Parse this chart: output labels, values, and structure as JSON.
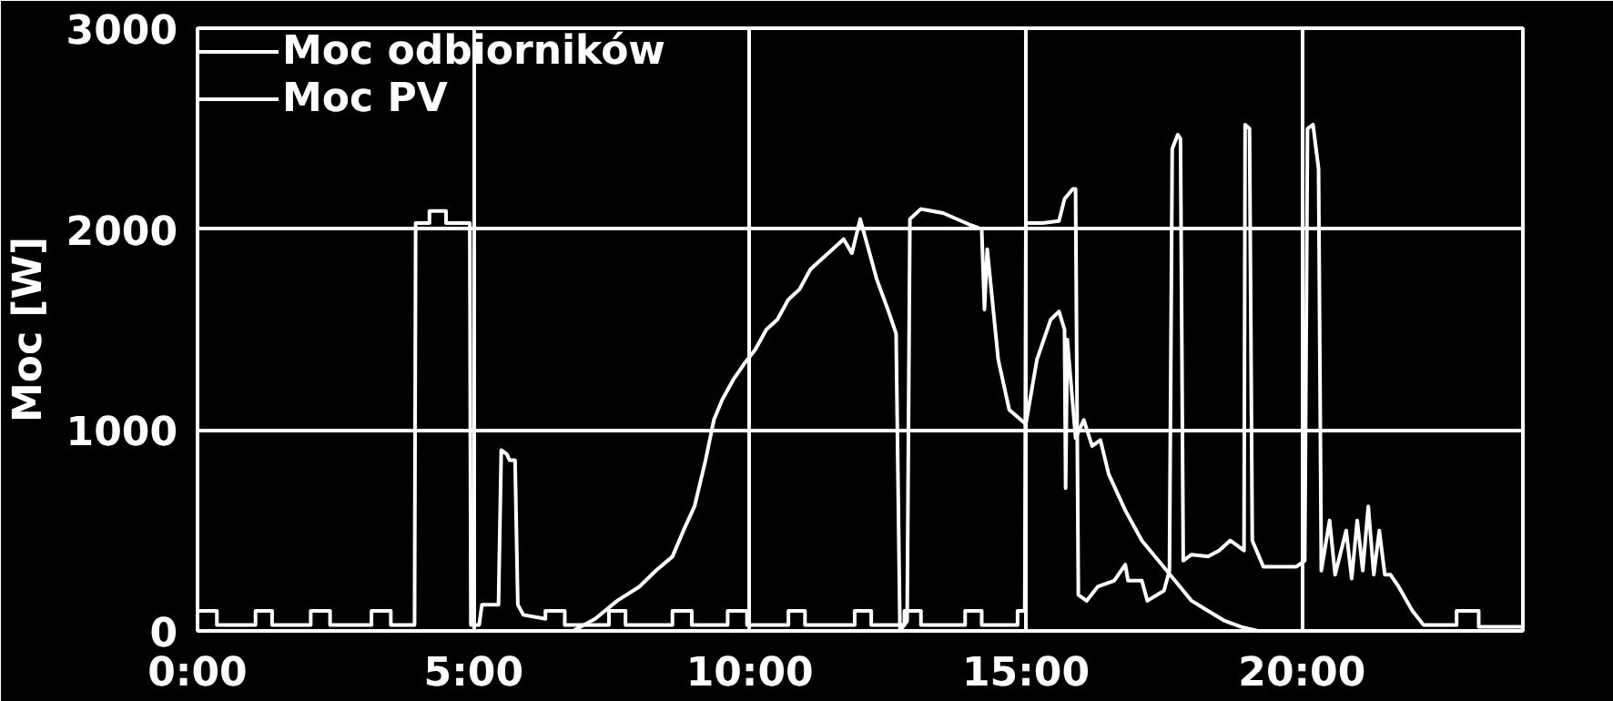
{
  "chart_data": {
    "type": "line",
    "ylabel": "Moc [W]",
    "xlim": [
      0,
      24
    ],
    "ylim": [
      0,
      3000
    ],
    "xticks": [
      {
        "value": 0,
        "label": "0:00"
      },
      {
        "value": 5,
        "label": "5:00"
      },
      {
        "value": 10,
        "label": "10:00"
      },
      {
        "value": 15,
        "label": "15:00"
      },
      {
        "value": 20,
        "label": "20:00"
      }
    ],
    "yticks": [
      0,
      1000,
      2000,
      3000
    ],
    "grid": true,
    "legend": "top left",
    "marker": "none",
    "line_style": "solid",
    "series": [
      {
        "name": "Moc odbiorników",
        "color": "#ffffff",
        "x": [
          0,
          0.35,
          0.35,
          1.05,
          1.05,
          1.35,
          1.35,
          2.05,
          2.05,
          2.4,
          2.4,
          3.15,
          3.15,
          3.5,
          3.5,
          3.93,
          3.95,
          4.2,
          4.2,
          4.5,
          4.5,
          4.93,
          4.95,
          5.1,
          5.15,
          5.45,
          5.5,
          5.6,
          5.65,
          5.75,
          5.8,
          5.9,
          6.3,
          6.3,
          6.65,
          6.65,
          7.45,
          7.45,
          7.75,
          7.75,
          8.6,
          8.6,
          8.95,
          8.95,
          9.6,
          9.6,
          9.95,
          9.95,
          10.7,
          10.7,
          11.0,
          11.0,
          11.9,
          11.9,
          12.2,
          12.2,
          12.8,
          12.8,
          13.1,
          13.1,
          13.9,
          13.9,
          14.2,
          14.2,
          14.85,
          14.85,
          14.98,
          15.0,
          15.3,
          15.6,
          15.7,
          15.85,
          15.9,
          15.95,
          16.1,
          16.3,
          16.6,
          16.8,
          16.85,
          17.1,
          17.2,
          17.5,
          17.6,
          17.65,
          17.75,
          17.8,
          17.85,
          18.0,
          18.3,
          18.5,
          18.7,
          18.95,
          18.97,
          19.05,
          19.1,
          19.3,
          19.9,
          20.05,
          20.1,
          20.2,
          20.3,
          20.35,
          20.5,
          20.6,
          20.8,
          20.9,
          21.0,
          21.1,
          21.2,
          21.3,
          21.4,
          21.5,
          21.6,
          21.75,
          22.0,
          22.2,
          22.8,
          22.8,
          23.2,
          23.2,
          24
        ],
        "values": [
          100,
          100,
          30,
          30,
          100,
          100,
          30,
          30,
          100,
          100,
          30,
          30,
          100,
          100,
          30,
          30,
          2030,
          2030,
          2090,
          2090,
          2030,
          2030,
          30,
          30,
          130,
          130,
          900,
          880,
          850,
          850,
          130,
          80,
          60,
          100,
          100,
          30,
          30,
          100,
          100,
          30,
          30,
          100,
          100,
          30,
          30,
          100,
          100,
          30,
          30,
          100,
          100,
          30,
          30,
          100,
          100,
          30,
          30,
          100,
          100,
          30,
          30,
          100,
          100,
          30,
          30,
          100,
          100,
          2030,
          2030,
          2040,
          2150,
          2200,
          2200,
          180,
          150,
          220,
          250,
          330,
          250,
          250,
          150,
          200,
          300,
          2400,
          2470,
          2450,
          350,
          380,
          370,
          400,
          450,
          400,
          2520,
          2500,
          450,
          320,
          320,
          350,
          2500,
          2520,
          2300,
          300,
          550,
          280,
          500,
          260,
          550,
          300,
          620,
          280,
          500,
          280,
          280,
          220,
          100,
          30,
          30,
          100,
          100,
          20,
          20
        ]
      },
      {
        "name": "Moc PV",
        "color": "#ffffff",
        "x": [
          6.8,
          7.2,
          7.6,
          8,
          8.3,
          8.6,
          8.8,
          9.0,
          9.2,
          9.35,
          9.5,
          9.7,
          9.9,
          10.1,
          10.3,
          10.5,
          10.7,
          10.9,
          11.1,
          11.3,
          11.5,
          11.7,
          11.85,
          12.0,
          12.15,
          12.3,
          12.5,
          12.65,
          12.72,
          12.85,
          12.9,
          13.1,
          13.5,
          14.0,
          14.2,
          14.25,
          14.3,
          14.5,
          14.7,
          15.0,
          15.2,
          15.45,
          15.6,
          15.7,
          15.72,
          15.75,
          15.9,
          16.05,
          16.2,
          16.35,
          16.5,
          16.8,
          17.1,
          17.4,
          17.7,
          18.0,
          18.3,
          18.6,
          18.9,
          19.2
        ],
        "values": [
          0,
          60,
          150,
          220,
          300,
          370,
          500,
          620,
          850,
          1050,
          1150,
          1250,
          1330,
          1400,
          1500,
          1550,
          1650,
          1700,
          1800,
          1850,
          1900,
          1950,
          1880,
          2050,
          1900,
          1750,
          1600,
          1480,
          0,
          50,
          2050,
          2100,
          2080,
          2020,
          2000,
          1600,
          1900,
          1350,
          1100,
          1030,
          1350,
          1550,
          1590,
          1500,
          710,
          1450,
          960,
          1050,
          920,
          950,
          780,
          600,
          450,
          350,
          250,
          150,
          100,
          50,
          20,
          0
        ]
      }
    ]
  }
}
